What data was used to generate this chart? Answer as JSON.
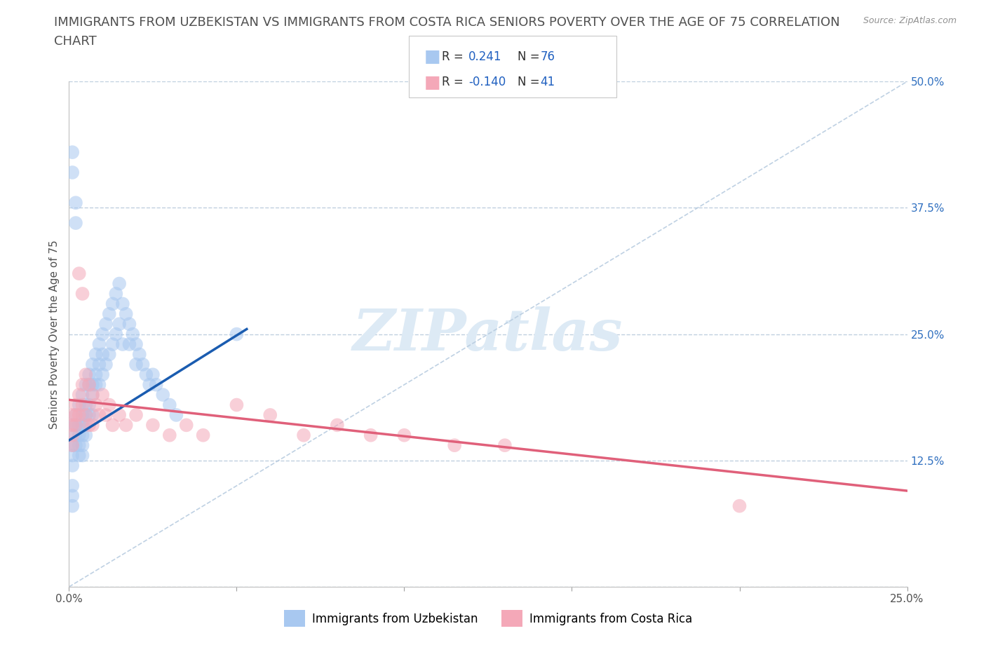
{
  "title_line1": "IMMIGRANTS FROM UZBEKISTAN VS IMMIGRANTS FROM COSTA RICA SENIORS POVERTY OVER THE AGE OF 75 CORRELATION",
  "title_line2": "CHART",
  "source": "Source: ZipAtlas.com",
  "ylabel": "Seniors Poverty Over the Age of 75",
  "xlim": [
    0.0,
    0.25
  ],
  "ylim": [
    0.0,
    0.5
  ],
  "ytick_positions": [
    0.0,
    0.125,
    0.25,
    0.375,
    0.5
  ],
  "ytick_labels": [
    "",
    "12.5%",
    "25.0%",
    "37.5%",
    "50.0%"
  ],
  "xtick_positions": [
    0.0,
    0.05,
    0.1,
    0.15,
    0.2,
    0.25
  ],
  "xtick_labels": [
    "0.0%",
    "",
    "",
    "",
    "",
    "25.0%"
  ],
  "R_uzbekistan": 0.241,
  "N_uzbekistan": 76,
  "R_costa_rica": -0.14,
  "N_costa_rica": 41,
  "color_uzbekistan": "#a8c8f0",
  "color_costa_rica": "#f4a8b8",
  "line_color_uzbekistan": "#1a5cb0",
  "line_color_costa_rica": "#e0607a",
  "diagonal_color": "#b8cce0",
  "watermark": "ZIPatlas",
  "watermark_color": "#ddeaf5",
  "legend_label_uzbekistan": "Immigrants from Uzbekistan",
  "legend_label_costa_rica": "Immigrants from Costa Rica",
  "background_color": "#ffffff",
  "grid_color": "#c0d0e0",
  "title_fontsize": 13,
  "axis_label_fontsize": 11,
  "tick_fontsize": 11,
  "uz_x": [
    0.001,
    0.001,
    0.001,
    0.001,
    0.002,
    0.002,
    0.002,
    0.002,
    0.003,
    0.003,
    0.003,
    0.003,
    0.003,
    0.004,
    0.004,
    0.004,
    0.004,
    0.004,
    0.004,
    0.005,
    0.005,
    0.005,
    0.005,
    0.005,
    0.006,
    0.006,
    0.006,
    0.006,
    0.007,
    0.007,
    0.007,
    0.007,
    0.008,
    0.008,
    0.008,
    0.009,
    0.009,
    0.009,
    0.01,
    0.01,
    0.01,
    0.011,
    0.011,
    0.012,
    0.012,
    0.013,
    0.013,
    0.014,
    0.014,
    0.015,
    0.015,
    0.016,
    0.016,
    0.017,
    0.018,
    0.018,
    0.019,
    0.02,
    0.02,
    0.021,
    0.022,
    0.023,
    0.024,
    0.025,
    0.026,
    0.028,
    0.03,
    0.032,
    0.001,
    0.001,
    0.002,
    0.002,
    0.05,
    0.001,
    0.001,
    0.001
  ],
  "uz_y": [
    0.14,
    0.16,
    0.13,
    0.12,
    0.15,
    0.17,
    0.16,
    0.14,
    0.18,
    0.15,
    0.16,
    0.14,
    0.13,
    0.19,
    0.17,
    0.16,
    0.15,
    0.14,
    0.13,
    0.2,
    0.18,
    0.17,
    0.16,
    0.15,
    0.21,
    0.2,
    0.18,
    0.17,
    0.22,
    0.2,
    0.19,
    0.17,
    0.23,
    0.21,
    0.2,
    0.24,
    0.22,
    0.2,
    0.25,
    0.23,
    0.21,
    0.26,
    0.22,
    0.27,
    0.23,
    0.28,
    0.24,
    0.29,
    0.25,
    0.3,
    0.26,
    0.28,
    0.24,
    0.27,
    0.26,
    0.24,
    0.25,
    0.24,
    0.22,
    0.23,
    0.22,
    0.21,
    0.2,
    0.21,
    0.2,
    0.19,
    0.18,
    0.17,
    0.43,
    0.41,
    0.38,
    0.36,
    0.25,
    0.1,
    0.09,
    0.08
  ],
  "cr_x": [
    0.001,
    0.001,
    0.001,
    0.001,
    0.002,
    0.002,
    0.002,
    0.003,
    0.003,
    0.004,
    0.004,
    0.005,
    0.005,
    0.006,
    0.006,
    0.007,
    0.007,
    0.008,
    0.009,
    0.01,
    0.011,
    0.012,
    0.013,
    0.015,
    0.017,
    0.02,
    0.025,
    0.03,
    0.035,
    0.04,
    0.05,
    0.06,
    0.07,
    0.08,
    0.09,
    0.1,
    0.115,
    0.13,
    0.003,
    0.004,
    0.2
  ],
  "cr_y": [
    0.17,
    0.16,
    0.15,
    0.14,
    0.18,
    0.17,
    0.16,
    0.19,
    0.17,
    0.2,
    0.18,
    0.21,
    0.17,
    0.2,
    0.16,
    0.19,
    0.16,
    0.18,
    0.17,
    0.19,
    0.17,
    0.18,
    0.16,
    0.17,
    0.16,
    0.17,
    0.16,
    0.15,
    0.16,
    0.15,
    0.18,
    0.17,
    0.15,
    0.16,
    0.15,
    0.15,
    0.14,
    0.14,
    0.31,
    0.29,
    0.08
  ],
  "uz_line_x": [
    0.0,
    0.053
  ],
  "uz_line_y": [
    0.145,
    0.255
  ],
  "cr_line_x": [
    0.0,
    0.25
  ],
  "cr_line_y": [
    0.185,
    0.095
  ]
}
